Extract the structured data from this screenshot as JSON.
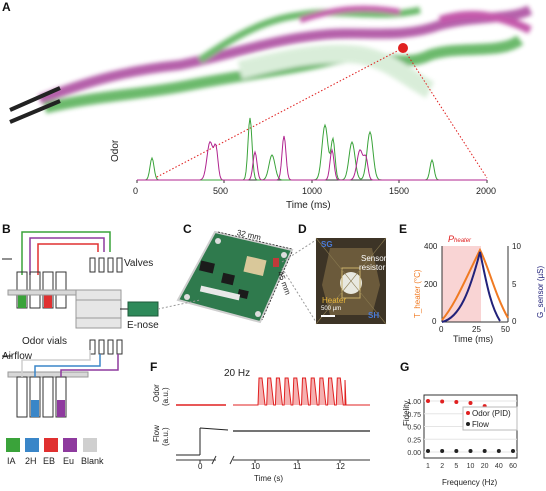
{
  "panels": [
    "A",
    "B",
    "C",
    "D",
    "E",
    "F",
    "G"
  ],
  "panelA": {
    "ylabel": "Odor",
    "xlabel": "Time (ms)",
    "xticks": [
      "0",
      "500",
      "1000",
      "1500",
      "2000"
    ],
    "colors": {
      "purple": "#b0248f",
      "green": "#3aa33a",
      "red": "#e02020"
    }
  },
  "panelB": {
    "valves_label": "Valves",
    "enose_label": "E-nose",
    "odor_vials_label": "Odor vials",
    "airflow_label": "Airflow",
    "legend": [
      {
        "code": "IA",
        "color": "#3aa33a"
      },
      {
        "code": "2H",
        "color": "#3a86c8"
      },
      {
        "code": "EB",
        "color": "#e03030"
      },
      {
        "code": "Eu",
        "color": "#8e3a9e"
      },
      {
        "code": "Blank",
        "color": "#cfcfcf"
      }
    ]
  },
  "panelC": {
    "dim_w": "32 mm",
    "dim_h": "45 mm"
  },
  "panelD": {
    "sg": "SG",
    "sensor_resistor_1": "Sensor",
    "sensor_resistor_2": "resistor",
    "heater": "Heater",
    "sh": "SH",
    "scale": "500 µm"
  },
  "panelE": {
    "title": "P_heater",
    "ylabel_left": "T_heater (°C)",
    "ylabel_right": "G_sensor (µS)",
    "xlabel": "Time (ms)",
    "yticks_left": [
      "0",
      "200",
      "400"
    ],
    "yticks_right": [
      "0",
      "5",
      "10"
    ],
    "xticks": [
      "0",
      "25",
      "50"
    ]
  },
  "panelF": {
    "title": "20 Hz",
    "odor_label_1": "Odor",
    "odor_label_2": "(a.u.)",
    "flow_label_1": "Flow",
    "flow_label_2": "(a.u.)",
    "xlabel": "Time (s)",
    "xticks": [
      "0",
      "10",
      "11",
      "12"
    ]
  },
  "panelG": {
    "ylabel": "Fidelity",
    "xlabel": "Frequency (Hz)",
    "yticks": [
      "0.00",
      "0.25",
      "0.50",
      "0.75",
      "1.00"
    ],
    "xticks": [
      "1",
      "2",
      "5",
      "10",
      "20",
      "40",
      "60"
    ],
    "legend_odor": "Odor (PID)",
    "legend_flow": "Flow"
  },
  "chart_data": [
    {
      "type": "line",
      "xlabel": "Time (s)",
      "series": [
        {
          "name": "Odor (PID)",
          "color": "#e02020"
        },
        {
          "name": "Flow",
          "color": "#222222"
        }
      ]
    },
    {
      "type": "scatter",
      "xlabel": "Frequency (Hz)",
      "ylabel": "Fidelity",
      "categories": [
        "1",
        "2",
        "5",
        "10",
        "20",
        "40",
        "60"
      ],
      "ylim": [
        0,
        1
      ],
      "series": [
        {
          "name": "Odor (PID)",
          "color": "#e02020",
          "values": [
            1.0,
            0.99,
            0.98,
            0.96,
            0.9,
            0.78,
            0.62
          ]
        },
        {
          "name": "Flow",
          "color": "#222222",
          "values": [
            0.02,
            0.02,
            0.02,
            0.02,
            0.02,
            0.02,
            0.02
          ]
        }
      ]
    }
  ]
}
